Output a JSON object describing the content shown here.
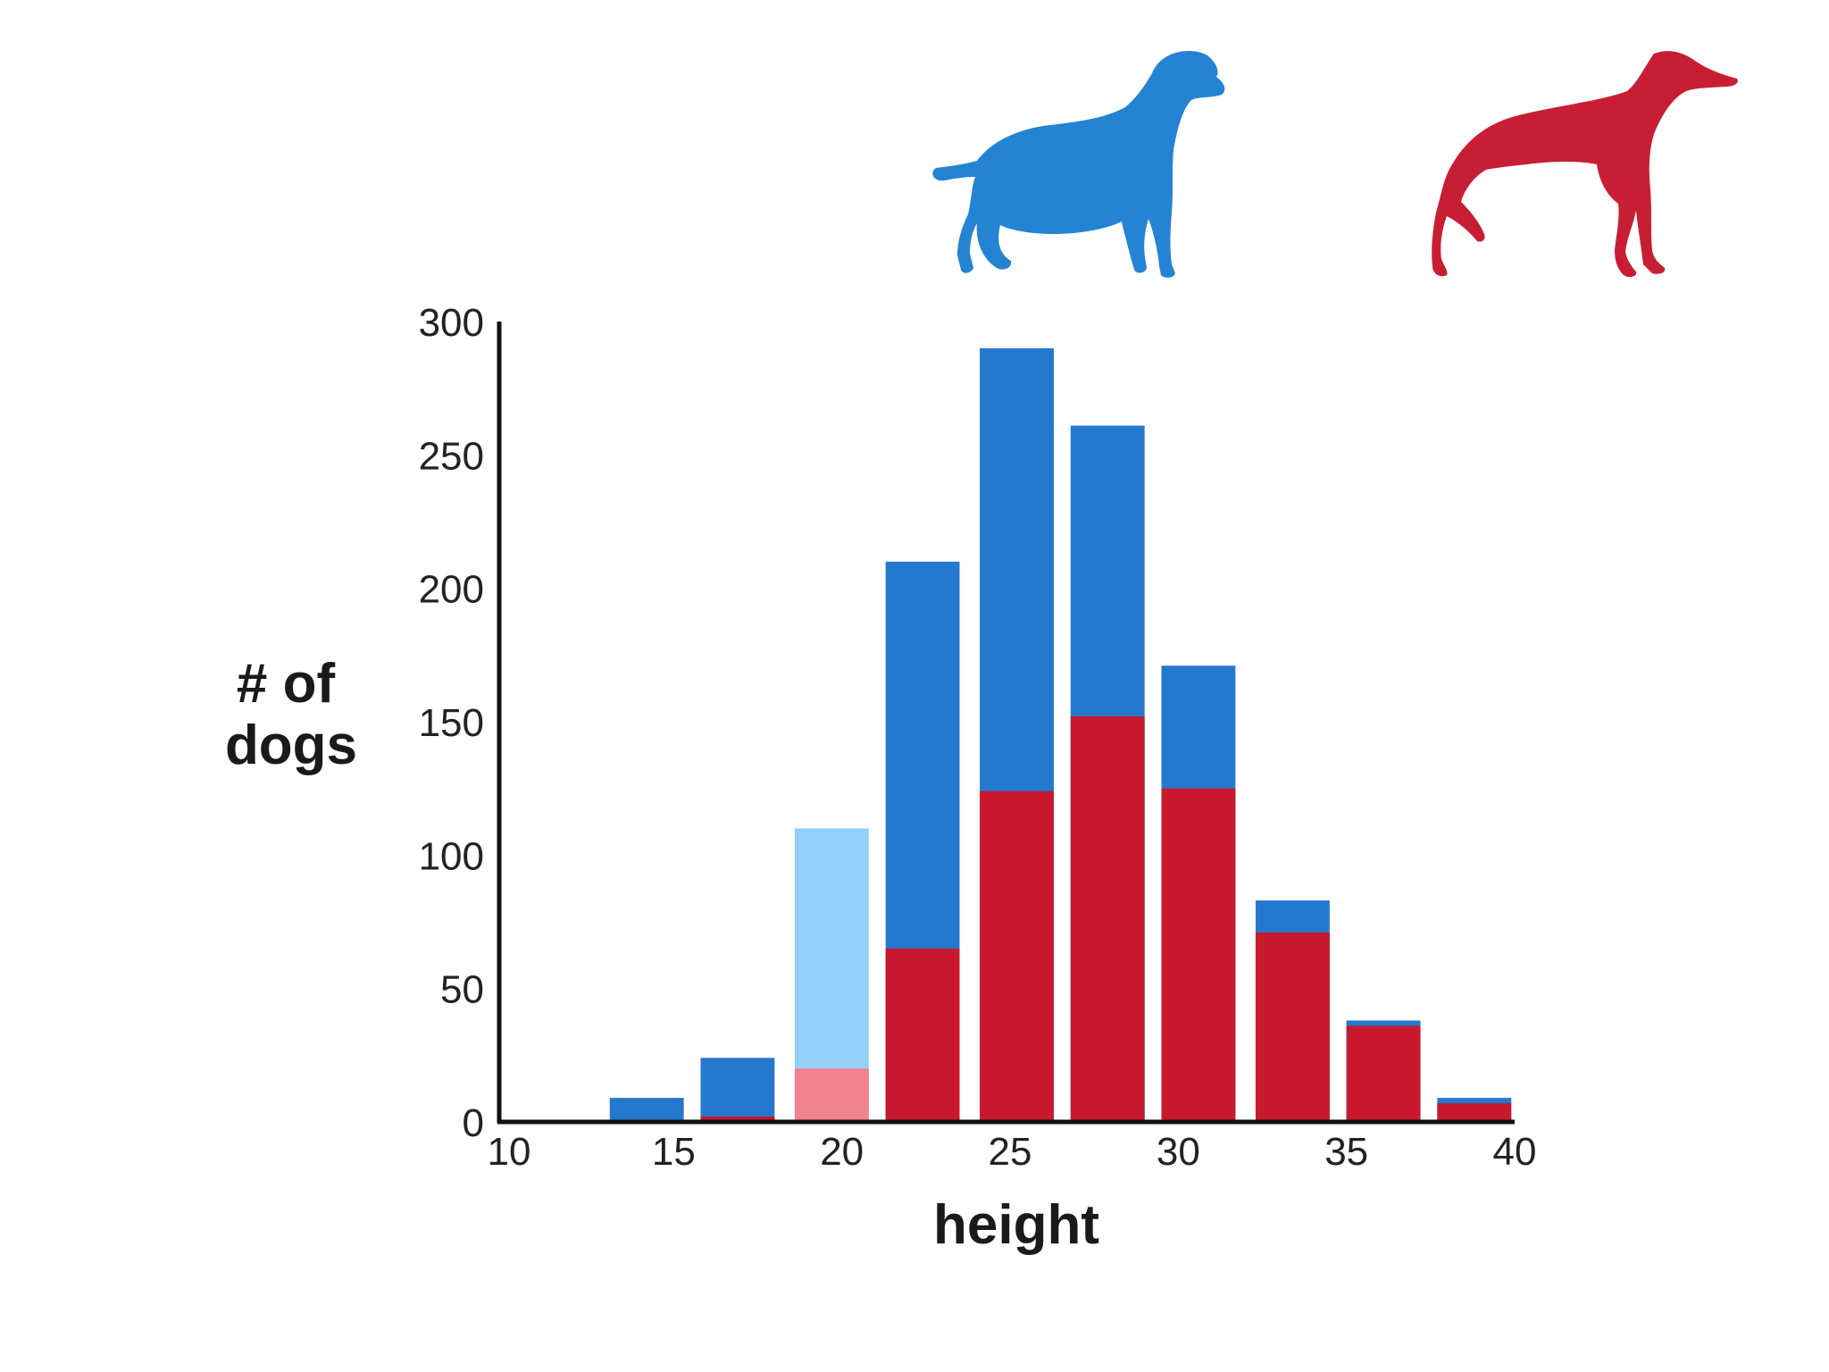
{
  "chart_data": {
    "type": "bar",
    "stacked": true,
    "xlabel": "height",
    "ylabel_lines": [
      "# of",
      "dogs"
    ],
    "xlim": [
      10,
      40
    ],
    "ylim": [
      0,
      300
    ],
    "x_ticks": [
      "10",
      "15",
      "20",
      "25",
      "30",
      "35",
      "40"
    ],
    "y_ticks": [
      "0",
      "50",
      "100",
      "150",
      "200",
      "250",
      "300"
    ],
    "bin_width": 2.5,
    "bins": [
      {
        "from": 13.1,
        "to": 15.3,
        "red": 0,
        "blue": 9,
        "highlight": false
      },
      {
        "from": 15.8,
        "to": 18.0,
        "red": 2,
        "blue": 24,
        "highlight": false
      },
      {
        "from": 18.6,
        "to": 20.8,
        "red": 20,
        "blue": 110,
        "highlight": true
      },
      {
        "from": 21.3,
        "to": 23.5,
        "red": 65,
        "blue": 210,
        "highlight": false
      },
      {
        "from": 24.1,
        "to": 26.3,
        "red": 124,
        "blue": 290,
        "highlight": false
      },
      {
        "from": 26.8,
        "to": 29.0,
        "red": 152,
        "blue": 261,
        "highlight": false
      },
      {
        "from": 29.5,
        "to": 31.7,
        "red": 125,
        "blue": 171,
        "highlight": false
      },
      {
        "from": 32.3,
        "to": 34.5,
        "red": 71,
        "blue": 83,
        "highlight": false
      },
      {
        "from": 35.0,
        "to": 37.2,
        "red": 36,
        "blue": 38,
        "highlight": false
      },
      {
        "from": 37.7,
        "to": 39.9,
        "red": 7,
        "blue": 9,
        "highlight": false
      }
    ],
    "series": [
      {
        "key": "red",
        "color": "#c8192e",
        "highlight_color": "#f2838f",
        "icon": "greyhound-icon"
      },
      {
        "key": "blue",
        "color": "#2479cf",
        "highlight_color": "#93d0fa",
        "icon": "labrador-icon"
      }
    ],
    "grid": false,
    "legend": "icons at top"
  }
}
